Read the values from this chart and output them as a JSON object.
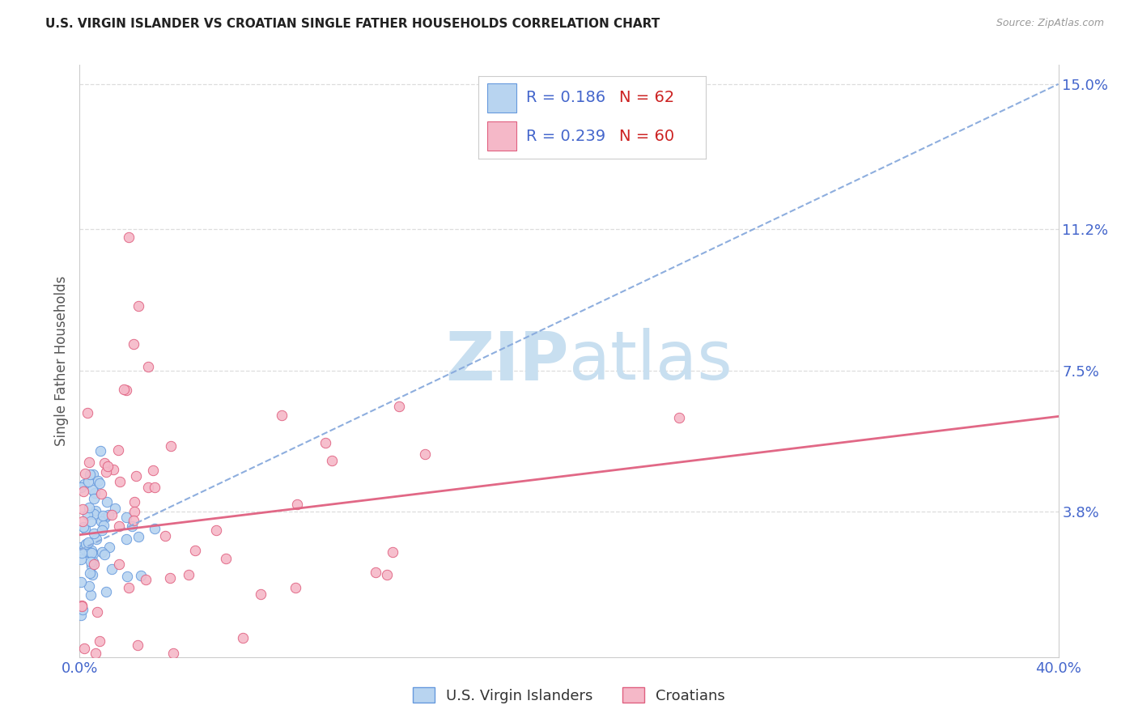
{
  "title": "U.S. VIRGIN ISLANDER VS CROATIAN SINGLE FATHER HOUSEHOLDS CORRELATION CHART",
  "source": "Source: ZipAtlas.com",
  "ylabel": "Single Father Households",
  "xlim": [
    0.0,
    0.4
  ],
  "ylim": [
    0.0,
    0.155
  ],
  "xticks": [
    0.0,
    0.4
  ],
  "xticklabels": [
    "0.0%",
    "40.0%"
  ],
  "yticks": [
    0.038,
    0.075,
    0.112,
    0.15
  ],
  "yticklabels": [
    "3.8%",
    "7.5%",
    "11.2%",
    "15.0%"
  ],
  "background_color": "#ffffff",
  "grid_color": "#dddddd",
  "series1_color": "#b8d4f0",
  "series1_edge_color": "#6699dd",
  "series2_color": "#f5b8c8",
  "series2_edge_color": "#e06080",
  "series1_label": "U.S. Virgin Islanders",
  "series2_label": "Croatians",
  "series1_R": 0.186,
  "series1_N": 62,
  "series2_R": 0.239,
  "series2_N": 60,
  "legend_R_color": "#4466cc",
  "legend_N_color": "#cc2222",
  "watermark_zip": "ZIP",
  "watermark_atlas": "atlas",
  "watermark_color_zip": "#c8dff0",
  "watermark_color_atlas": "#c8dff0",
  "series1_line_color": "#88aadd",
  "series2_line_color": "#e06080",
  "marker_size": 80
}
